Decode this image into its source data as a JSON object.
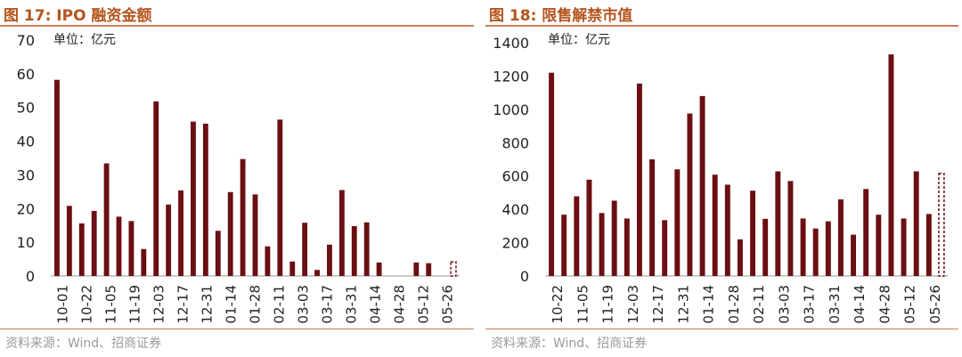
{
  "panels": [
    {
      "title": "图 17:  IPO 融资金额",
      "unit": "单位：亿元",
      "source": "资料来源：Wind、招商证券"
    },
    {
      "title": "图 18:  限售解禁市值",
      "unit": "单位：亿元",
      "source": "资料来源：Wind、招商证券"
    }
  ],
  "colors": {
    "bar": "#6b0f12",
    "title": "#b5541c",
    "rule": "#c9805a"
  },
  "chart_data": [
    {
      "type": "bar",
      "title": "IPO 融资金额",
      "ylabel": "单位：亿元",
      "ylim": [
        0,
        70
      ],
      "yticks": [
        0,
        10,
        20,
        30,
        40,
        50,
        60,
        70
      ],
      "x_tick_labels": [
        "10-01",
        "10-22",
        "11-05",
        "11-19",
        "12-03",
        "12-17",
        "12-31",
        "01-14",
        "01-28",
        "02-11",
        "03-03",
        "03-17",
        "03-31",
        "04-14",
        "04-28",
        "05-12",
        "05-26"
      ],
      "values": [
        58.2,
        20.8,
        15.6,
        19.3,
        33.4,
        17.6,
        16.3,
        8.0,
        51.8,
        21.2,
        25.4,
        45.8,
        45.2,
        13.4,
        24.9,
        34.7,
        24.2,
        8.8,
        46.4,
        4.3,
        15.8,
        1.8,
        9.3,
        25.5,
        14.8,
        15.9,
        4.0,
        0,
        0,
        4.0,
        3.8,
        0,
        4.2
      ],
      "last_bar_dashed": true,
      "grid": false
    },
    {
      "type": "bar",
      "title": "限售解禁市值",
      "ylabel": "单位：亿元",
      "ylim": [
        0,
        1400
      ],
      "yticks": [
        0,
        200,
        400,
        600,
        800,
        1000,
        1200,
        1400
      ],
      "x_tick_labels": [
        "10-22",
        "11-05",
        "11-19",
        "12-03",
        "12-17",
        "12-31",
        "01-14",
        "01-28",
        "02-11",
        "03-03",
        "03-17",
        "03-31",
        "04-14",
        "04-28",
        "05-12",
        "05-26"
      ],
      "values": [
        1220,
        368,
        478,
        578,
        378,
        452,
        345,
        1155,
        700,
        335,
        640,
        975,
        1080,
        608,
        548,
        220,
        512,
        343,
        628,
        570,
        345,
        285,
        328,
        460,
        248,
        522,
        368,
        1330,
        345,
        628,
        372,
        615
      ],
      "last_bar_dashed": true,
      "grid": false
    }
  ]
}
